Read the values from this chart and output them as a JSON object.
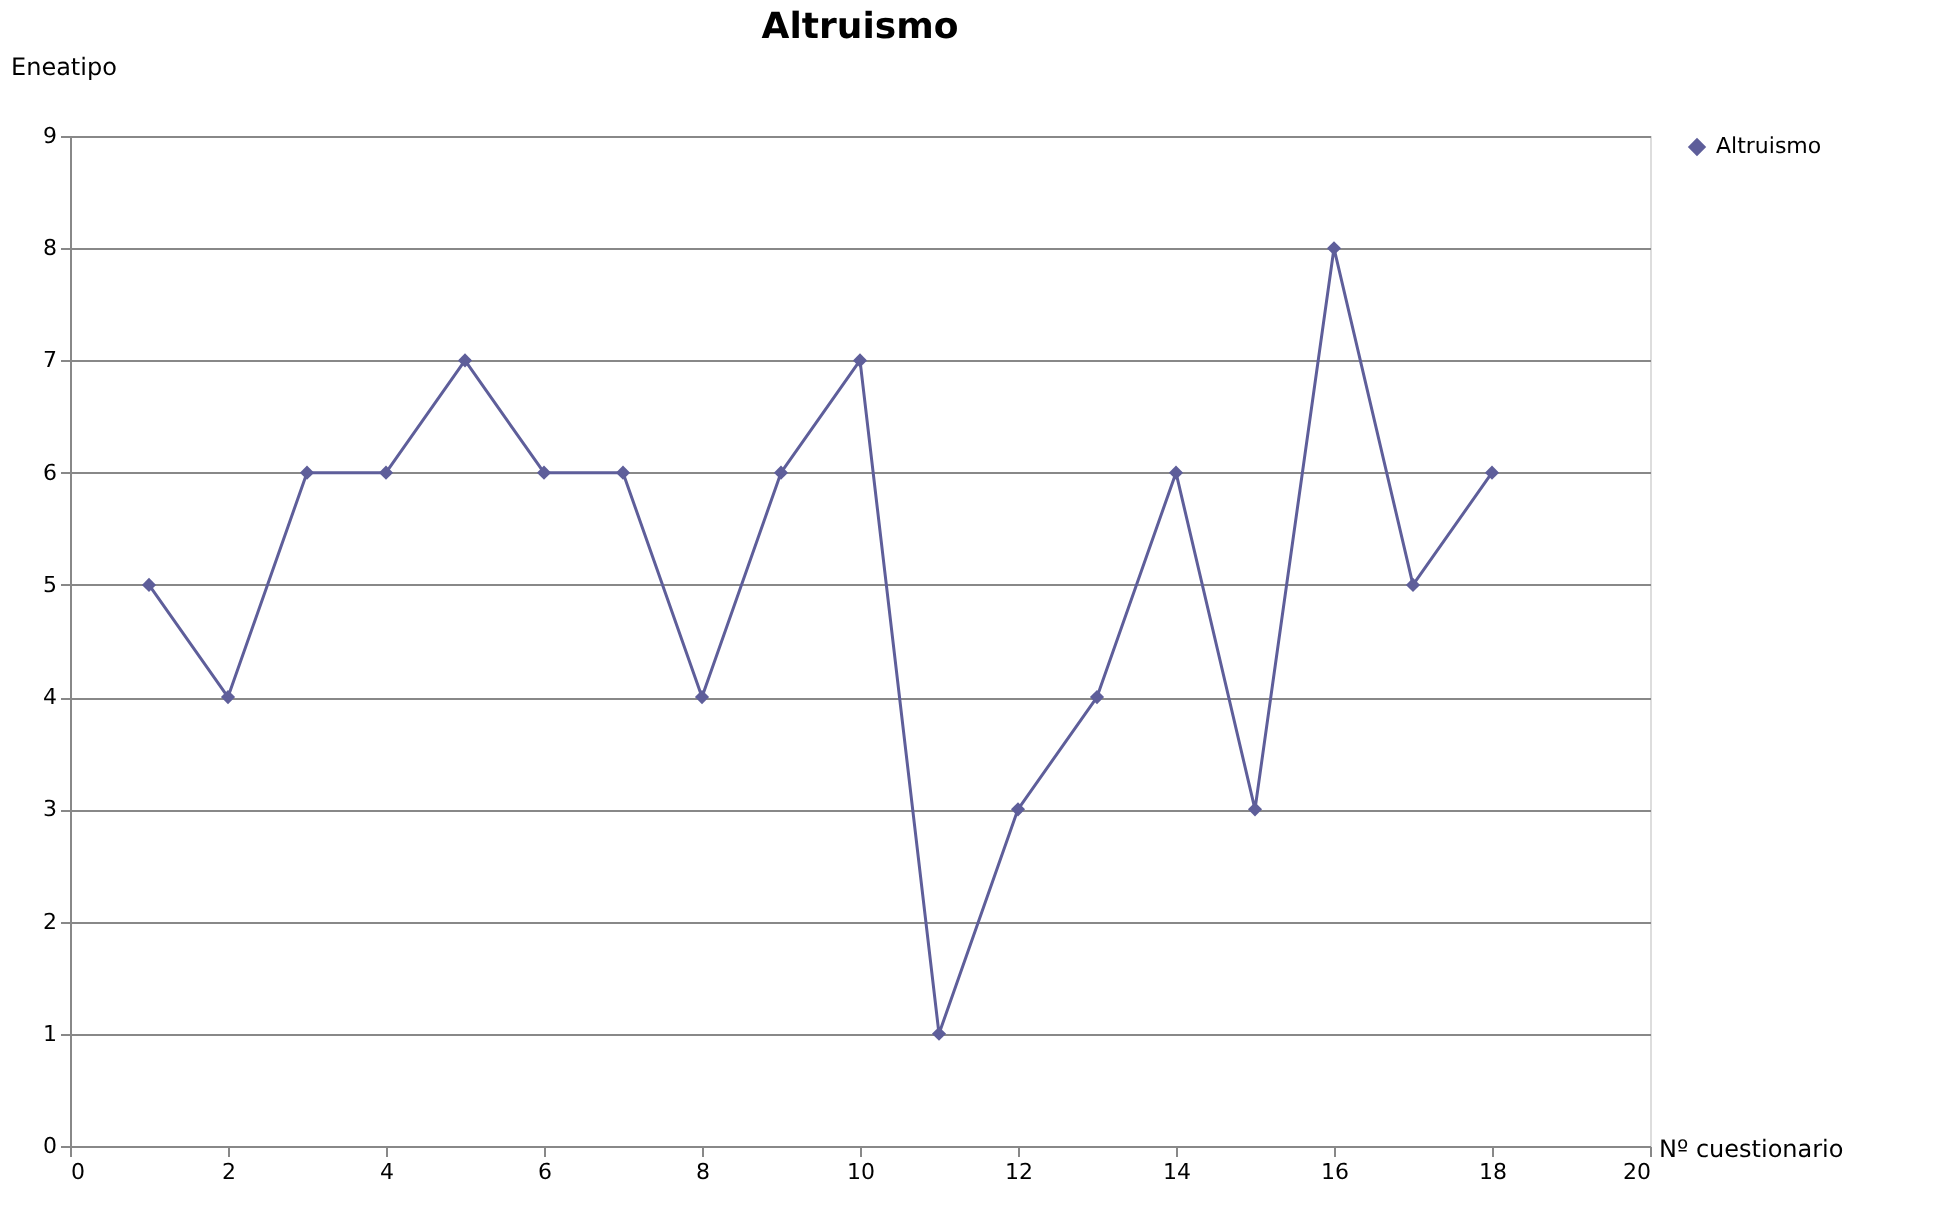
{
  "chart_data": {
    "type": "line",
    "title": "Altruismo",
    "xlabel": "Nº cuestionario",
    "ylabel": "Eneatipo",
    "x": [
      1,
      2,
      3,
      4,
      5,
      6,
      7,
      8,
      9,
      10,
      11,
      12,
      13,
      14,
      15,
      16,
      17,
      18
    ],
    "series": [
      {
        "name": "Altruismo",
        "color": "#5e5e9a",
        "values": [
          5,
          4,
          6,
          6,
          7,
          6,
          6,
          4,
          6,
          7,
          1,
          3,
          4,
          6,
          3,
          8,
          5,
          6
        ]
      }
    ],
    "xlim": [
      0,
      20
    ],
    "xticks": [
      0,
      2,
      4,
      6,
      8,
      10,
      12,
      14,
      16,
      18,
      20
    ],
    "ylim": [
      0,
      9
    ],
    "yticks": [
      0,
      1,
      2,
      3,
      4,
      5,
      6,
      7,
      8,
      9
    ],
    "grid": "y",
    "legend": "right",
    "marker": "diamond",
    "line_style": "solid"
  }
}
